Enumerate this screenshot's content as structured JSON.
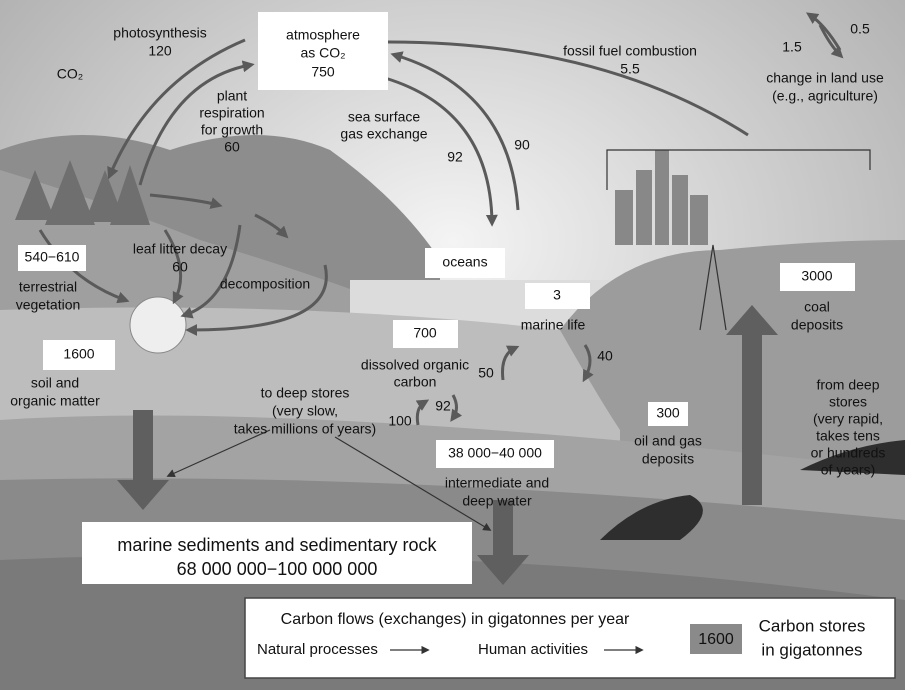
{
  "atmosphere": {
    "label": [
      "atmosphere",
      "as CO₂"
    ],
    "value": "750"
  },
  "photosynthesis": {
    "label": "photosynthesis",
    "value": "120"
  },
  "volcano_co2": "CO₂",
  "plant_respiration": {
    "label": [
      "plant",
      "respiration",
      "for growth"
    ],
    "value": "60"
  },
  "fossil_fuel": {
    "label": "fossil fuel combustion",
    "value": "5.5"
  },
  "land_use": {
    "values": [
      "0.5",
      "1.5"
    ],
    "label": [
      "change in land use",
      "(e.g., agriculture)"
    ]
  },
  "sea_surface": {
    "label": [
      "sea surface",
      "gas exchange"
    ],
    "values": [
      "92",
      "90"
    ]
  },
  "terrestrial_vegetation": {
    "value": "540−610",
    "label": [
      "terrestrial",
      "vegetation"
    ]
  },
  "leaf_litter": {
    "label": "leaf litter decay",
    "value": "60"
  },
  "decomposition": "decomposition",
  "oceans": "oceans",
  "marine_life": {
    "value": "3",
    "label": "marine life",
    "flows": [
      "50",
      "40"
    ]
  },
  "dissolved_organic": {
    "value": "700",
    "label": [
      "dissolved organic",
      "carbon"
    ],
    "flows": [
      "100",
      "92"
    ]
  },
  "deep_water": {
    "value": "38 000−40 000",
    "label": [
      "intermediate and",
      "deep water"
    ]
  },
  "soil": {
    "value": "1600",
    "label": [
      "soil and",
      "organic matter"
    ]
  },
  "to_deep_stores": [
    "to deep stores",
    "(very slow,",
    "takes millions of years)"
  ],
  "coal": {
    "value": "3000",
    "label": [
      "coal",
      "deposits"
    ]
  },
  "oil_gas": {
    "value": "300",
    "label": [
      "oil and gas",
      "deposits"
    ]
  },
  "from_deep_stores": [
    "from deep",
    "stores",
    "(very rapid,",
    "takes tens",
    "or hundreds",
    "of years)"
  ],
  "sediments": {
    "label": "marine sediments and sedimentary rock",
    "value": "68 000 000−100 000 000"
  },
  "legend": {
    "flows_title": "Carbon flows (exchanges) in gigatonnes per year",
    "natural": "Natural processes",
    "human": "Human activities",
    "store_sample": "1600",
    "stores_label": [
      "Carbon stores",
      "in gigatonnes"
    ]
  }
}
